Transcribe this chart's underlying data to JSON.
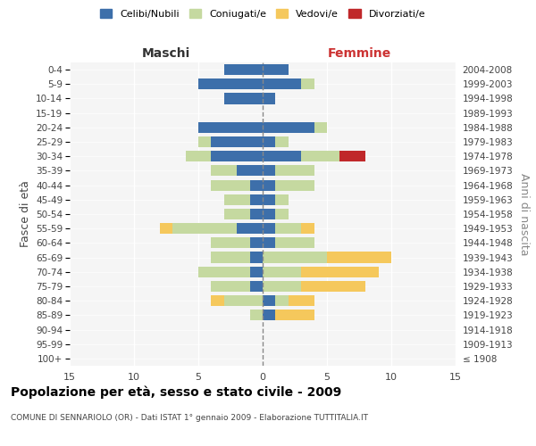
{
  "age_groups": [
    "100+",
    "95-99",
    "90-94",
    "85-89",
    "80-84",
    "75-79",
    "70-74",
    "65-69",
    "60-64",
    "55-59",
    "50-54",
    "45-49",
    "40-44",
    "35-39",
    "30-34",
    "25-29",
    "20-24",
    "15-19",
    "10-14",
    "5-9",
    "0-4"
  ],
  "birth_years": [
    "≤ 1908",
    "1909-1913",
    "1914-1918",
    "1919-1923",
    "1924-1928",
    "1929-1933",
    "1934-1938",
    "1939-1943",
    "1944-1948",
    "1949-1953",
    "1954-1958",
    "1959-1963",
    "1964-1968",
    "1969-1973",
    "1974-1978",
    "1979-1983",
    "1984-1988",
    "1989-1993",
    "1994-1998",
    "1999-2003",
    "2004-2008"
  ],
  "maschi": {
    "celibi": [
      0,
      0,
      0,
      0,
      0,
      1,
      1,
      1,
      1,
      2,
      1,
      1,
      1,
      2,
      4,
      4,
      5,
      0,
      3,
      5,
      3
    ],
    "coniugati": [
      0,
      0,
      0,
      1,
      3,
      3,
      4,
      3,
      3,
      5,
      2,
      2,
      3,
      2,
      2,
      1,
      0,
      0,
      0,
      0,
      0
    ],
    "vedovi": [
      0,
      0,
      0,
      0,
      1,
      0,
      0,
      0,
      0,
      1,
      0,
      0,
      0,
      0,
      0,
      0,
      0,
      0,
      0,
      0,
      0
    ],
    "divorziati": [
      0,
      0,
      0,
      0,
      0,
      0,
      0,
      0,
      0,
      0,
      0,
      0,
      0,
      0,
      0,
      0,
      0,
      0,
      0,
      0,
      0
    ]
  },
  "femmine": {
    "nubili": [
      0,
      0,
      0,
      1,
      1,
      0,
      0,
      0,
      1,
      1,
      1,
      1,
      1,
      1,
      3,
      1,
      4,
      0,
      1,
      3,
      2
    ],
    "coniugate": [
      0,
      0,
      0,
      0,
      1,
      3,
      3,
      5,
      3,
      2,
      1,
      1,
      3,
      3,
      3,
      1,
      1,
      0,
      0,
      1,
      0
    ],
    "vedove": [
      0,
      0,
      0,
      3,
      2,
      5,
      6,
      5,
      0,
      1,
      0,
      0,
      0,
      0,
      0,
      0,
      0,
      0,
      0,
      0,
      0
    ],
    "divorziate": [
      0,
      0,
      0,
      0,
      0,
      0,
      0,
      0,
      0,
      0,
      0,
      0,
      0,
      0,
      2,
      0,
      0,
      0,
      0,
      0,
      0
    ]
  },
  "colors": {
    "celibi_nubili": "#3d6faa",
    "coniugati": "#c5d9a0",
    "vedovi": "#f5c85c",
    "divorziati": "#c0282a"
  },
  "xlim": 15,
  "title": "Popolazione per età, sesso e stato civile - 2009",
  "subtitle": "COMUNE DI SENNARIOLO (OR) - Dati ISTAT 1° gennaio 2009 - Elaborazione TUTTITALIA.IT",
  "ylabel_left": "Fasce di età",
  "ylabel_right": "Anni di nascita",
  "xlabel_maschi": "Maschi",
  "xlabel_femmine": "Femmine",
  "background_color": "#f5f5f5"
}
